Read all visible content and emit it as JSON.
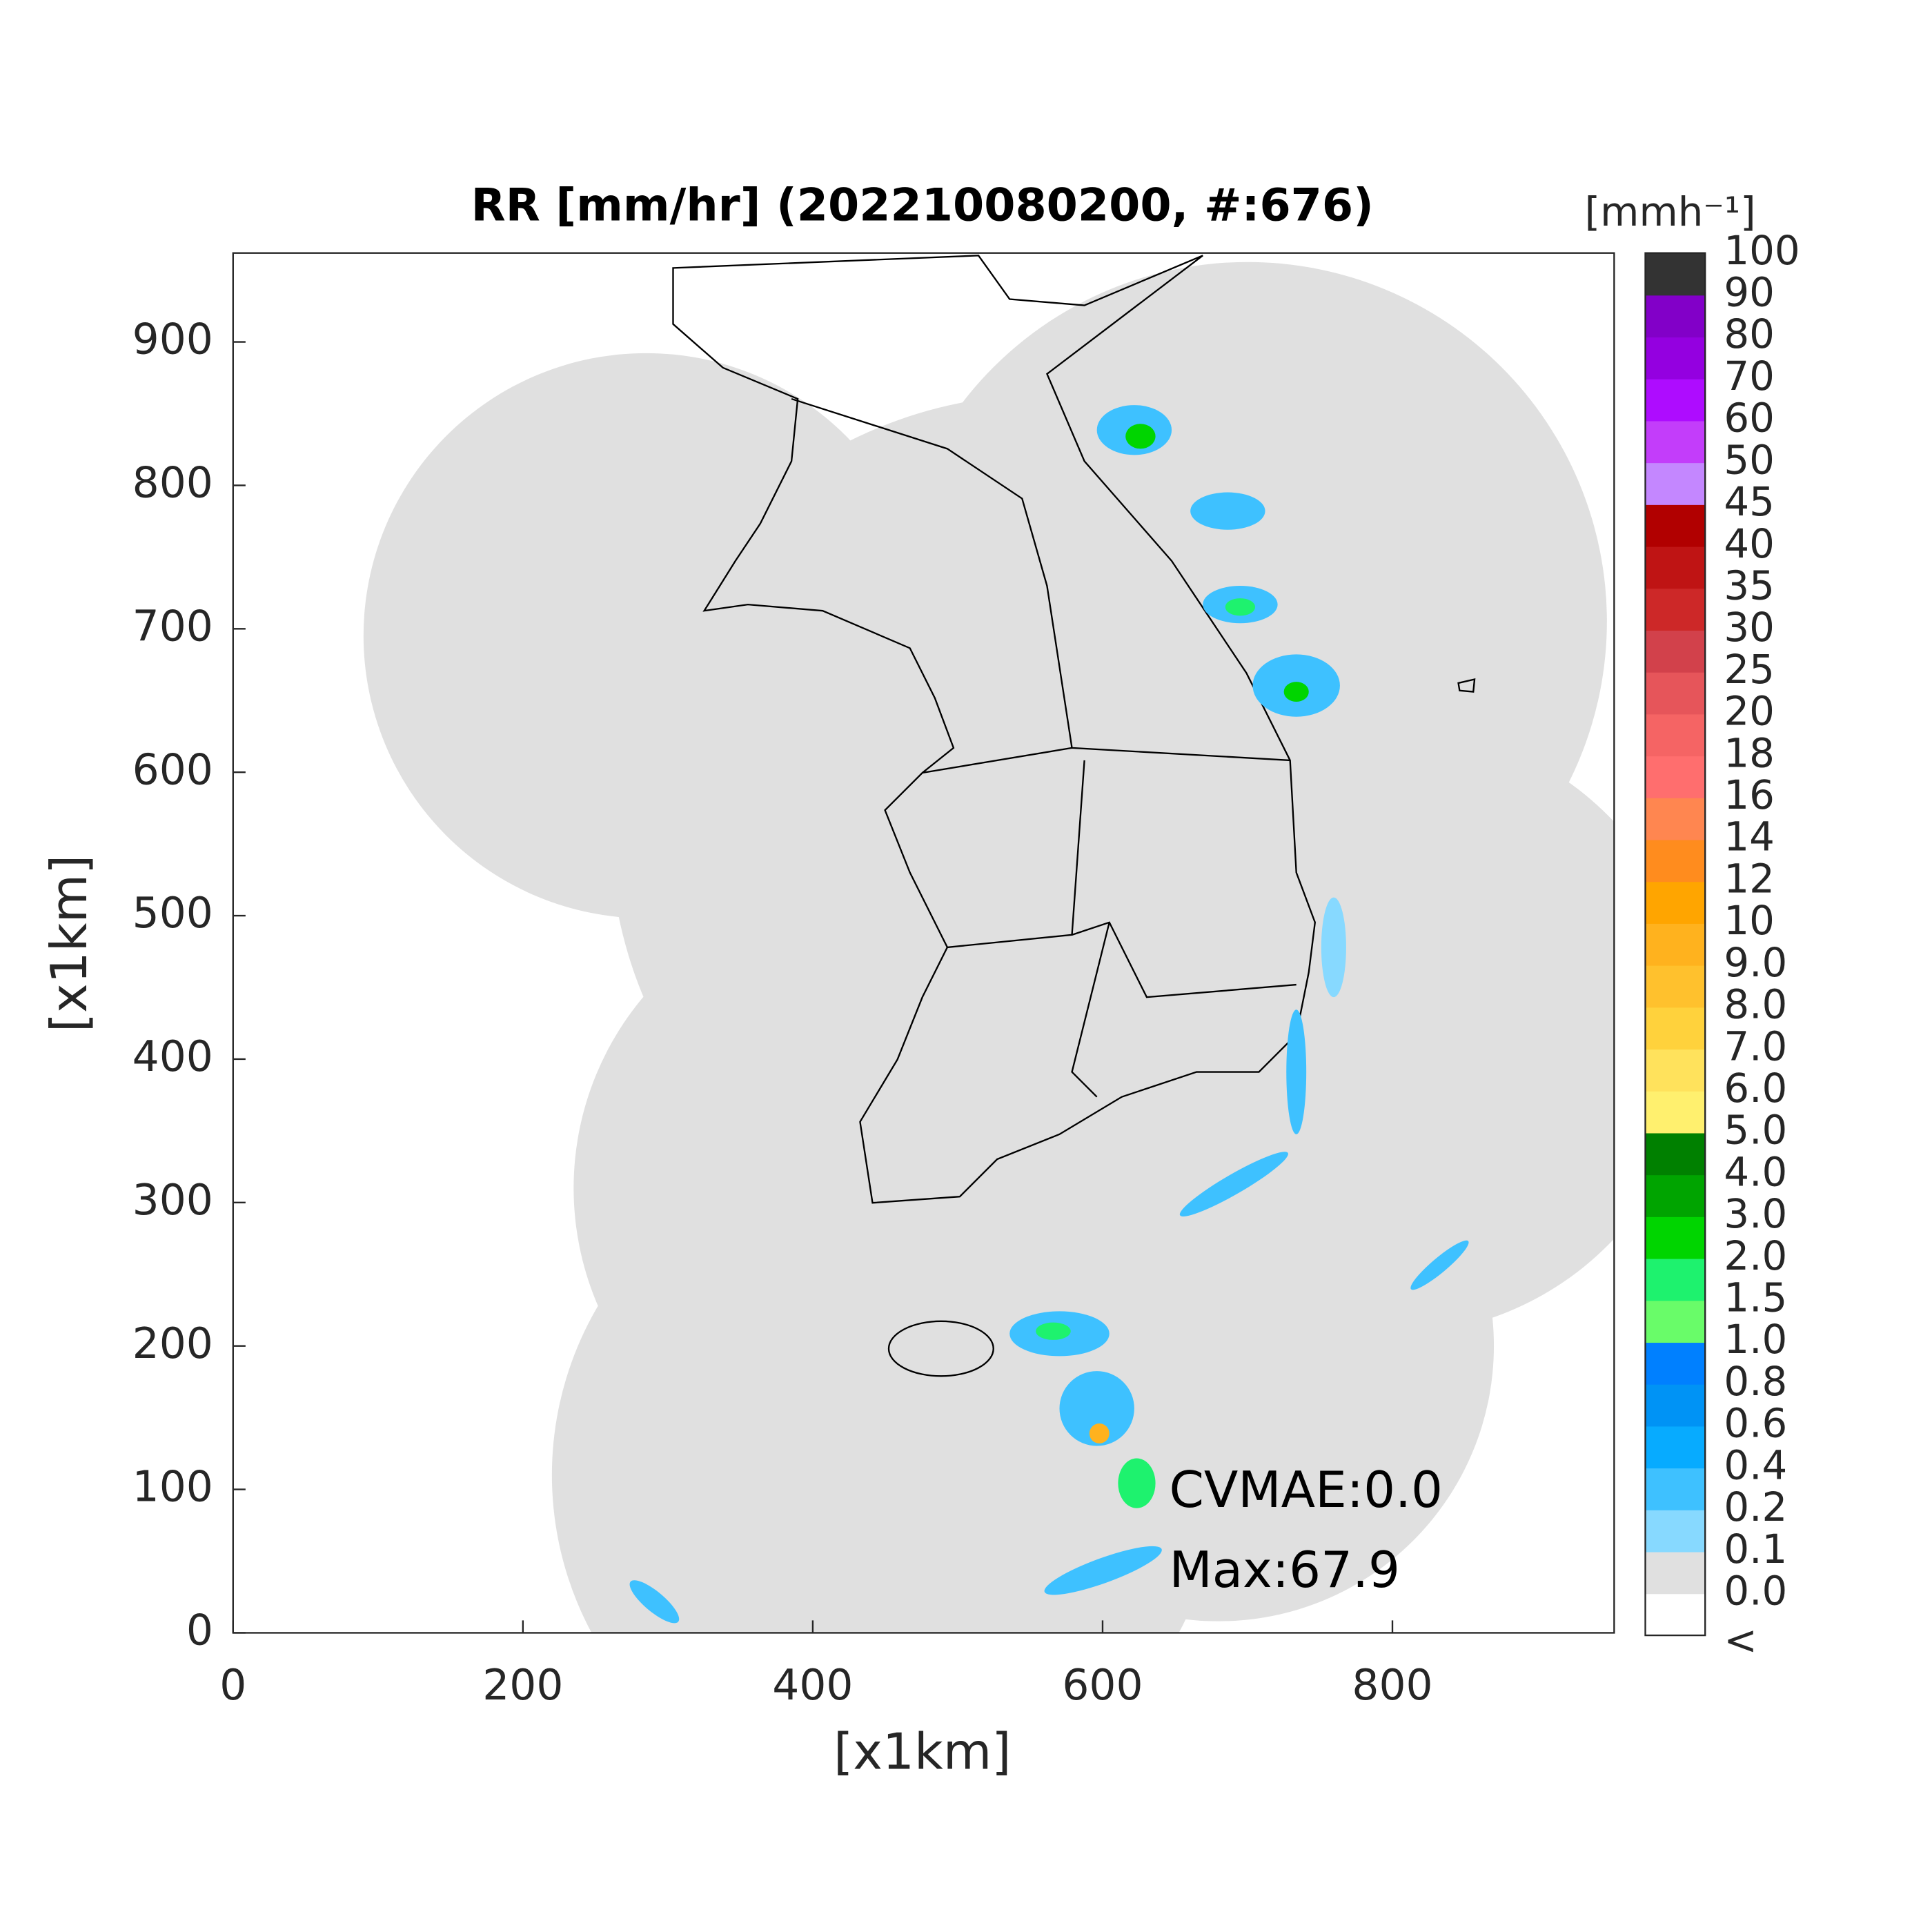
{
  "chart_data": {
    "type": "radar-map",
    "title": "RR [mm/hr] (202210080200, #:676)",
    "xlabel": "[x1km]",
    "ylabel": "[x1km]",
    "xlim": [
      0,
      953
    ],
    "ylim": [
      0,
      962
    ],
    "xticks": [
      0,
      200,
      400,
      600,
      800
    ],
    "yticks": [
      0,
      100,
      200,
      300,
      400,
      500,
      600,
      700,
      800,
      900
    ],
    "annotations": [
      "CVMAE:0.0",
      "Max:67.9"
    ],
    "colorbar": {
      "title": "[mmh⁻¹]",
      "labels": [
        "<",
        "0.0",
        "0.1",
        "0.2",
        "0.4",
        "0.6",
        "0.8",
        "1.0",
        "1.5",
        "2.0",
        "3.0",
        "4.0",
        "5.0",
        "6.0",
        "7.0",
        "8.0",
        "9.0",
        "10",
        "12",
        "14",
        "16",
        "18",
        "20",
        "25",
        "30",
        "35",
        "40",
        "45",
        "50",
        "60",
        "70",
        "80",
        "90",
        "100"
      ],
      "colors": [
        "#ffffff",
        "#e0e0e0",
        "#87d9ff",
        "#3ec1ff",
        "#07abff",
        "#0093f5",
        "#0080ff",
        "#69fc69",
        "#1ef26e",
        "#00d500",
        "#00a400",
        "#008000",
        "#fff06e",
        "#ffe25c",
        "#ffd23c",
        "#ffc12d",
        "#ffb21e",
        "#ffa500",
        "#ff8c1e",
        "#ff8650",
        "#ff6e6e",
        "#f56464",
        "#e6555a",
        "#d2414b",
        "#cd2828",
        "#bf1414",
        "#b10000",
        "#c487ff",
        "#c33dfa",
        "#ae0cff",
        "#9400e0",
        "#8200c8",
        "#333333"
      ]
    }
  }
}
